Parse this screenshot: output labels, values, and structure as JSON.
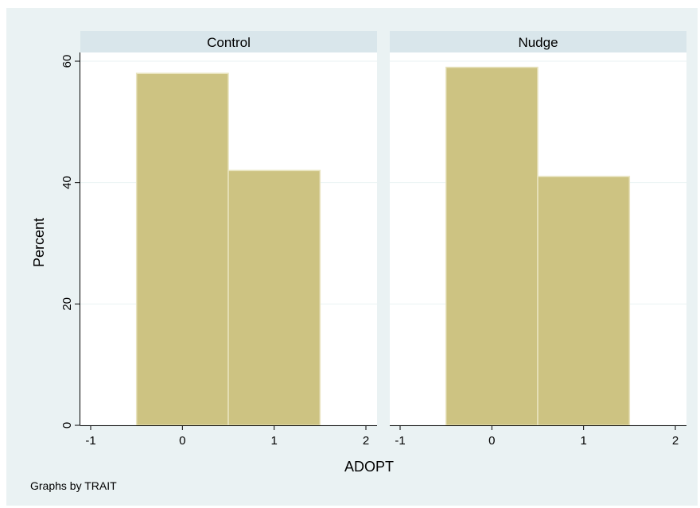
{
  "colors": {
    "outer_background": "#eaf2f3",
    "plot_background": "#ffffff",
    "strip_background": "#d9e6eb",
    "bar_fill": "#cdc382",
    "bar_edge": "#e9e4c0",
    "grid": "#eaf2f3",
    "axis": "#000000"
  },
  "chart_data": {
    "type": "bar",
    "xlabel": "ADOPT",
    "ylabel": "Percent",
    "note": "Graphs by TRAIT",
    "xlim": [
      -1,
      2
    ],
    "ylim": [
      0,
      60
    ],
    "x_ticks": [
      -1,
      0,
      1,
      2
    ],
    "y_ticks": [
      0,
      20,
      40,
      60
    ],
    "bin_width": 1,
    "grid": true,
    "panels": [
      {
        "title": "Control",
        "bins": [
          {
            "x": 0,
            "value": 58
          },
          {
            "x": 1,
            "value": 42
          }
        ]
      },
      {
        "title": "Nudge",
        "bins": [
          {
            "x": 0,
            "value": 59
          },
          {
            "x": 1,
            "value": 41
          }
        ]
      }
    ]
  }
}
